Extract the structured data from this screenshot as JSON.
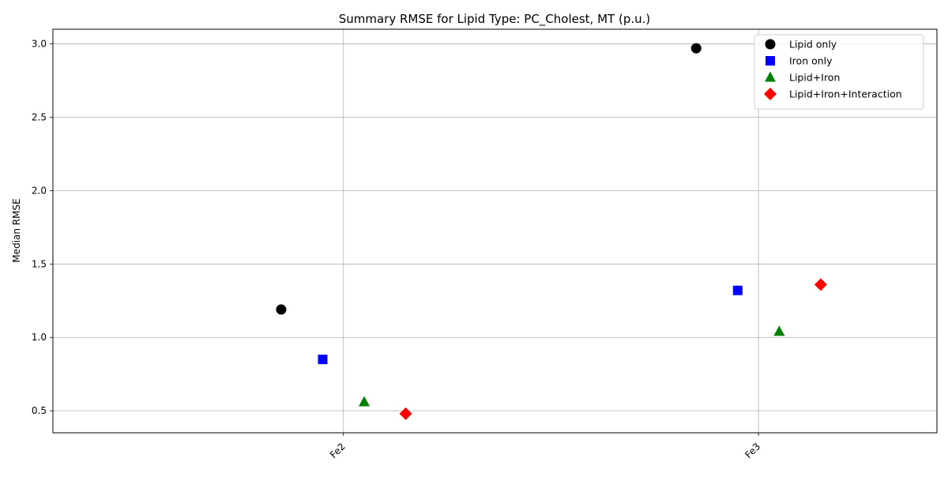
{
  "chart_data": {
    "type": "scatter",
    "title": "Summary RMSE for Lipid Type: PC_Cholest, MT (p.u.)",
    "xlabel": "",
    "ylabel": "Median RMSE",
    "categories": [
      "Fe2",
      "Fe3"
    ],
    "ylim": [
      0.35,
      3.1
    ],
    "yticks": [
      "0.5",
      "1.0",
      "1.5",
      "2.0",
      "2.5",
      "3.0"
    ],
    "grid": true,
    "legend_position": "top-right",
    "series": [
      {
        "name": "Lipid only",
        "marker": "circle",
        "color": "#000000",
        "offset": -0.15,
        "values": [
          1.19,
          2.97
        ]
      },
      {
        "name": "Iron only",
        "marker": "square",
        "color": "#0000ff",
        "offset": -0.05,
        "values": [
          0.85,
          1.32
        ]
      },
      {
        "name": "Lipid+Iron",
        "marker": "triangle",
        "color": "#008000",
        "offset": 0.05,
        "values": [
          0.56,
          1.04
        ]
      },
      {
        "name": "Lipid+Iron+Interaction",
        "marker": "diamond",
        "color": "#ff0000",
        "offset": 0.15,
        "values": [
          0.48,
          1.36
        ]
      }
    ]
  }
}
